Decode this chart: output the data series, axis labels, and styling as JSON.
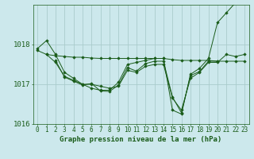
{
  "background_color": "#cce8ec",
  "grid_color": "#aacccc",
  "line_color": "#1a5c1a",
  "marker_color": "#1a5c1a",
  "xlabel": "Graphe pression niveau de la mer (hPa)",
  "xlabel_fontsize": 6.5,
  "ylabel_fontsize": 6.5,
  "tick_fontsize": 5.5,
  "ylim": [
    1016.0,
    1019.0
  ],
  "xlim": [
    -0.5,
    23.5
  ],
  "yticks": [
    1016,
    1017,
    1018
  ],
  "xticks": [
    0,
    1,
    2,
    3,
    4,
    5,
    6,
    7,
    8,
    9,
    10,
    11,
    12,
    13,
    14,
    15,
    16,
    17,
    18,
    19,
    20,
    21,
    22,
    23
  ],
  "series": [
    {
      "x": [
        0,
        1,
        2,
        3,
        4,
        5,
        6,
        7,
        8,
        9,
        10,
        11,
        12,
        13,
        14,
        15,
        16,
        17,
        18,
        19,
        20,
        21,
        22,
        23
      ],
      "y": [
        1017.9,
        1018.1,
        1017.75,
        1017.3,
        1017.15,
        1017.0,
        1016.9,
        1016.85,
        1016.85,
        1017.05,
        1017.5,
        1017.55,
        1017.6,
        1017.65,
        1017.65,
        1016.35,
        1016.25,
        1017.25,
        1017.4,
        1017.65,
        1018.55,
        1018.8,
        1019.05,
        1019.2
      ]
    },
    {
      "x": [
        0,
        1,
        2,
        3,
        4,
        5,
        6,
        7,
        8,
        9,
        10,
        11,
        12,
        13,
        14,
        15,
        16,
        17,
        18,
        19,
        20,
        21,
        22,
        23
      ],
      "y": [
        1017.85,
        1017.75,
        1017.72,
        1017.7,
        1017.68,
        1017.68,
        1017.66,
        1017.65,
        1017.65,
        1017.65,
        1017.65,
        1017.65,
        1017.65,
        1017.65,
        1017.65,
        1017.62,
        1017.6,
        1017.6,
        1017.6,
        1017.6,
        1017.58,
        1017.58,
        1017.58,
        1017.58
      ]
    },
    {
      "x": [
        1,
        2,
        3,
        4,
        5,
        6,
        7,
        8,
        9,
        10,
        11,
        12,
        13,
        14,
        15,
        16,
        17,
        18,
        19,
        20,
        21,
        22,
        23
      ],
      "y": [
        1017.75,
        1017.55,
        1017.2,
        1017.1,
        1017.0,
        1017.0,
        1016.95,
        1016.9,
        1016.95,
        1017.35,
        1017.3,
        1017.45,
        1017.5,
        1017.5,
        1016.65,
        1016.35,
        1017.15,
        1017.3,
        1017.55,
        1017.55,
        1017.75,
        1017.7,
        1017.75
      ]
    },
    {
      "x": [
        2,
        3,
        4,
        5,
        6,
        7,
        8,
        9,
        10,
        11,
        12,
        13,
        14,
        15,
        16,
        17,
        18,
        19,
        20
      ],
      "y": [
        1017.6,
        1017.18,
        1017.08,
        1016.98,
        1017.02,
        1016.83,
        1016.82,
        1016.98,
        1017.42,
        1017.33,
        1017.52,
        1017.58,
        1017.58,
        1016.68,
        1016.28,
        1017.22,
        1017.32,
        1017.58,
        1017.58
      ]
    }
  ]
}
